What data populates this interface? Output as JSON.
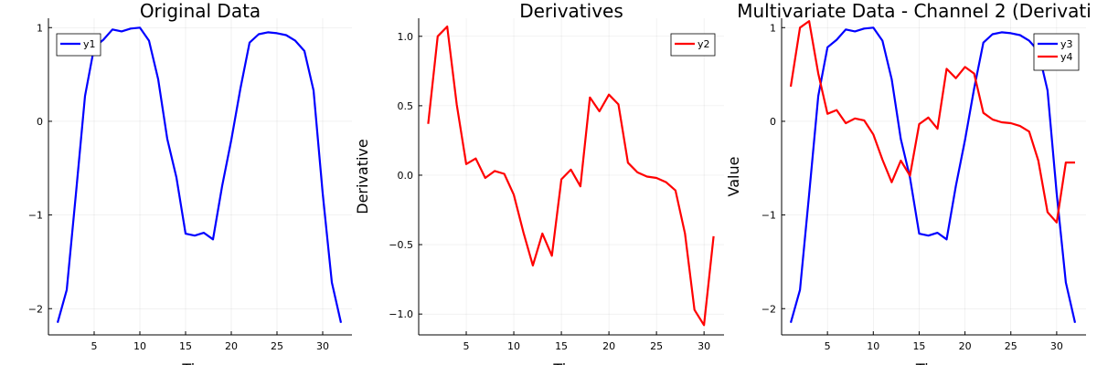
{
  "chart_data": [
    {
      "type": "line",
      "title": "Original Data",
      "xlabel": "Time",
      "ylabel": "",
      "xlim": [
        0,
        33.2
      ],
      "ylim": [
        -2.28,
        1.1
      ],
      "xticks": [
        5,
        10,
        15,
        20,
        25,
        30
      ],
      "yticks": [
        -2,
        -1,
        0,
        1
      ],
      "grid": true,
      "legend": "top-left",
      "x": [
        1,
        2,
        3,
        4,
        5,
        6,
        7,
        8,
        9,
        10,
        11,
        12,
        13,
        14,
        15,
        16,
        17,
        18,
        19,
        20,
        21,
        22,
        23,
        24,
        25,
        26,
        27,
        28,
        29,
        30,
        31,
        32
      ],
      "series": [
        {
          "name": "y1",
          "color": "#0000ff",
          "values": [
            -2.15,
            -1.8,
            -0.78,
            0.27,
            0.79,
            0.87,
            0.98,
            0.96,
            0.99,
            1.0,
            0.86,
            0.45,
            -0.19,
            -0.6,
            -1.2,
            -1.22,
            -1.19,
            -1.26,
            -0.69,
            -0.2,
            0.35,
            0.84,
            0.93,
            0.95,
            0.94,
            0.92,
            0.86,
            0.75,
            0.33,
            -0.77,
            -1.72,
            -2.15
          ]
        }
      ]
    },
    {
      "type": "line",
      "title": "Derivatives",
      "xlabel": "Time",
      "ylabel": "Derivative",
      "xlim": [
        0,
        32.1
      ],
      "ylim": [
        -1.15,
        1.13
      ],
      "xticks": [
        5,
        10,
        15,
        20,
        25,
        30
      ],
      "yticks": [
        -1.0,
        -0.5,
        0.0,
        0.5,
        1.0
      ],
      "ytick_labels": [
        "−1.0",
        "−0.5",
        "0.0",
        "0.5",
        "1.0"
      ],
      "grid": true,
      "legend": "top-right",
      "x": [
        1,
        2,
        3,
        4,
        5,
        6,
        7,
        8,
        9,
        10,
        11,
        12,
        13,
        14,
        15,
        16,
        17,
        18,
        19,
        20,
        21,
        22,
        23,
        24,
        25,
        26,
        27,
        28,
        29,
        30,
        31
      ],
      "series": [
        {
          "name": "y2",
          "color": "#ff0000",
          "values": [
            0.37,
            1.0,
            1.07,
            0.51,
            0.08,
            0.12,
            -0.02,
            0.03,
            0.01,
            -0.14,
            -0.41,
            -0.65,
            -0.42,
            -0.58,
            -0.03,
            0.04,
            -0.08,
            0.56,
            0.46,
            0.58,
            0.51,
            0.09,
            0.02,
            -0.01,
            -0.02,
            -0.05,
            -0.11,
            -0.42,
            -0.97,
            -1.08,
            -0.44
          ]
        }
      ]
    },
    {
      "type": "line",
      "title": "Multivariate Data - Channel 2 (Derivati",
      "xlabel": "Time",
      "ylabel": "Value",
      "xlim": [
        0,
        33.2
      ],
      "ylim": [
        -2.28,
        1.1
      ],
      "xticks": [
        5,
        10,
        15,
        20,
        25,
        30
      ],
      "yticks": [
        -2,
        -1,
        0,
        1
      ],
      "grid": true,
      "legend": "top-right",
      "x": [
        1,
        2,
        3,
        4,
        5,
        6,
        7,
        8,
        9,
        10,
        11,
        12,
        13,
        14,
        15,
        16,
        17,
        18,
        19,
        20,
        21,
        22,
        23,
        24,
        25,
        26,
        27,
        28,
        29,
        30,
        31,
        32
      ],
      "series": [
        {
          "name": "y3",
          "color": "#0000ff",
          "values": [
            -2.15,
            -1.8,
            -0.78,
            0.27,
            0.79,
            0.87,
            0.98,
            0.96,
            0.99,
            1.0,
            0.86,
            0.45,
            -0.19,
            -0.6,
            -1.2,
            -1.22,
            -1.19,
            -1.26,
            -0.69,
            -0.2,
            0.35,
            0.84,
            0.93,
            0.95,
            0.94,
            0.92,
            0.86,
            0.75,
            0.33,
            -0.77,
            -1.72,
            -2.15
          ]
        },
        {
          "name": "y4",
          "color": "#ff0000",
          "values": [
            0.37,
            1.0,
            1.07,
            0.51,
            0.08,
            0.12,
            -0.02,
            0.03,
            0.01,
            -0.14,
            -0.41,
            -0.65,
            -0.42,
            -0.58,
            -0.03,
            0.04,
            -0.08,
            0.56,
            0.46,
            0.58,
            0.51,
            0.09,
            0.02,
            -0.01,
            -0.02,
            -0.05,
            -0.11,
            -0.42,
            -0.97,
            -1.08,
            -0.44,
            -0.44
          ]
        }
      ]
    }
  ]
}
